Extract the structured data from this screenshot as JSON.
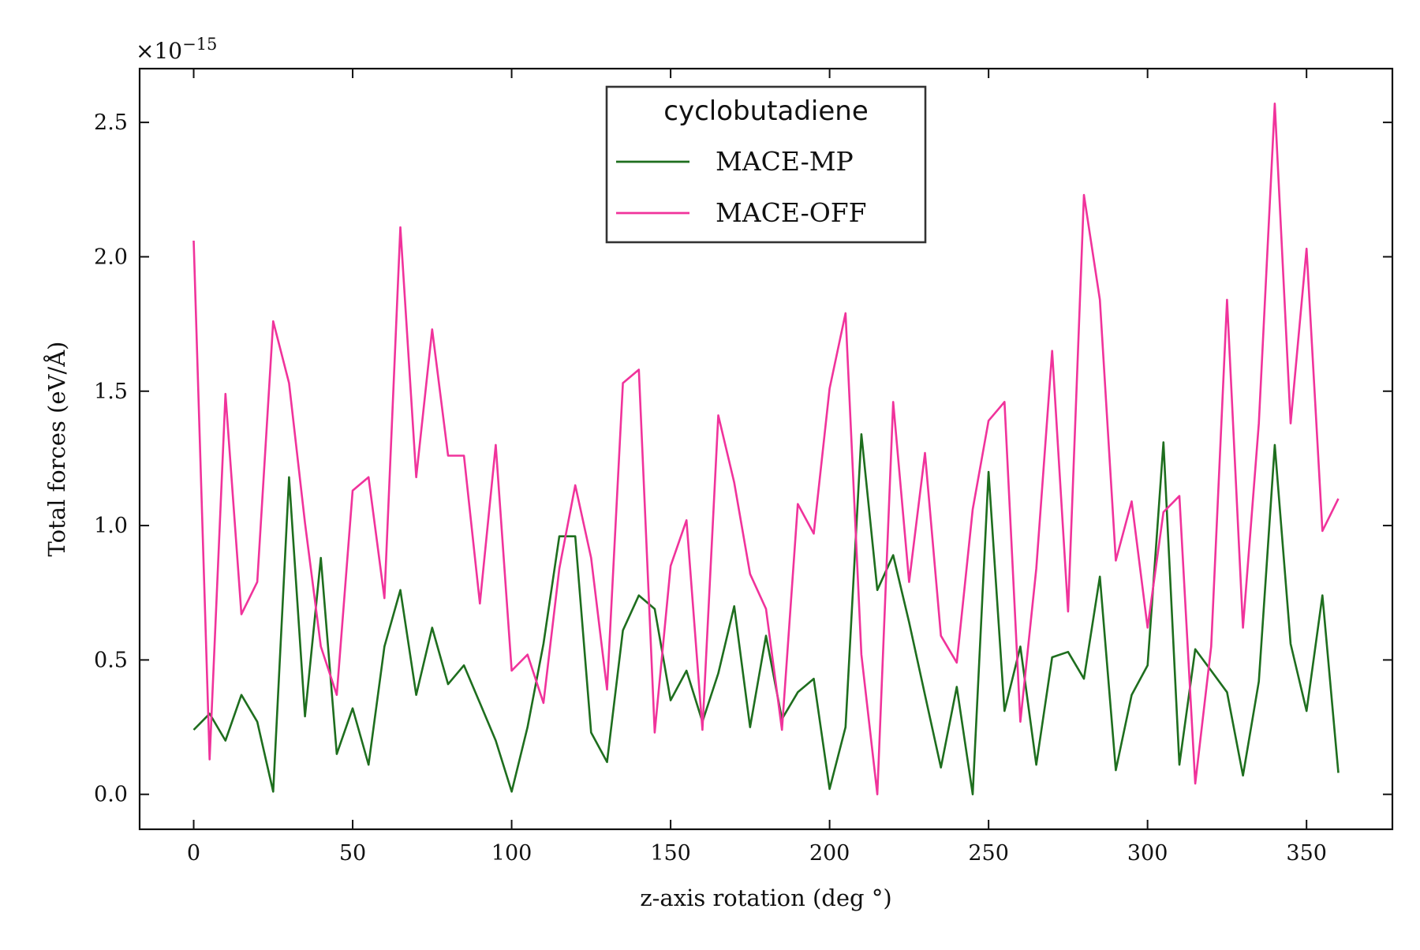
{
  "chart_data": {
    "type": "line",
    "xlabel": "z-axis rotation (deg °)",
    "ylabel": "Total forces (eV/Å)",
    "y_multiplier": {
      "base": "×10",
      "exponent": "−15"
    },
    "xlim": [
      -17,
      377
    ],
    "ylim": [
      -0.13,
      2.7
    ],
    "xticks": [
      0,
      50,
      100,
      150,
      200,
      250,
      300,
      350
    ],
    "yticks": [
      0.0,
      0.5,
      1.0,
      1.5,
      2.0,
      2.5
    ],
    "ytick_labels": [
      "0.0",
      "0.5",
      "1.0",
      "1.5",
      "2.0",
      "2.5"
    ],
    "legend": {
      "title": "cyclobutadiene",
      "position": "upper center"
    },
    "grid": false,
    "x": [
      0,
      5,
      10,
      15,
      20,
      25,
      30,
      35,
      40,
      45,
      50,
      55,
      60,
      65,
      70,
      75,
      80,
      85,
      90,
      95,
      100,
      105,
      110,
      115,
      120,
      125,
      130,
      135,
      140,
      145,
      150,
      155,
      160,
      165,
      170,
      175,
      180,
      185,
      190,
      195,
      200,
      205,
      210,
      215,
      220,
      225,
      230,
      235,
      240,
      245,
      250,
      255,
      260,
      265,
      270,
      275,
      280,
      285,
      290,
      295,
      300,
      305,
      310,
      315,
      320,
      325,
      330,
      335,
      340,
      345,
      350,
      355,
      360
    ],
    "series": [
      {
        "name": "MACE-MP",
        "color": "#1e6e1e",
        "values": [
          0.24,
          0.3,
          0.2,
          0.37,
          0.27,
          0.01,
          1.18,
          0.29,
          0.88,
          0.15,
          0.32,
          0.11,
          0.55,
          0.76,
          0.37,
          0.62,
          0.41,
          0.48,
          0.34,
          0.2,
          0.01,
          0.25,
          0.56,
          0.96,
          0.96,
          0.23,
          0.12,
          0.61,
          0.74,
          0.69,
          0.35,
          0.46,
          0.27,
          0.45,
          0.7,
          0.25,
          0.59,
          0.28,
          0.38,
          0.43,
          0.02,
          0.25,
          1.34,
          0.76,
          0.89,
          0.64,
          0.37,
          0.1,
          0.4,
          0.0,
          1.2,
          0.31,
          0.55,
          0.11,
          0.51,
          0.53,
          0.43,
          0.81,
          0.09,
          0.37,
          0.48,
          1.31,
          0.11,
          0.54,
          0.46,
          0.38,
          0.07,
          0.42,
          1.3,
          0.56,
          0.31,
          0.74,
          0.08
        ]
      },
      {
        "name": "MACE-OFF",
        "color": "#f0339b",
        "values": [
          2.06,
          0.13,
          1.49,
          0.67,
          0.79,
          1.76,
          1.53,
          1.01,
          0.55,
          0.37,
          1.13,
          1.18,
          0.73,
          2.11,
          1.18,
          1.73,
          1.26,
          1.26,
          0.71,
          1.3,
          0.46,
          0.52,
          0.34,
          0.84,
          1.15,
          0.88,
          0.39,
          1.53,
          1.58,
          0.23,
          0.85,
          1.02,
          0.24,
          1.41,
          1.16,
          0.82,
          0.69,
          0.24,
          1.08,
          0.97,
          1.51,
          1.79,
          0.52,
          0.0,
          1.46,
          0.79,
          1.27,
          0.59,
          0.49,
          1.06,
          1.39,
          1.46,
          0.27,
          0.84,
          1.65,
          0.68,
          2.23,
          1.84,
          0.87,
          1.09,
          0.62,
          1.05,
          1.11,
          0.04,
          0.55,
          1.84,
          0.62,
          1.38,
          2.57,
          1.38,
          2.03,
          0.98,
          1.1
        ]
      }
    ]
  }
}
